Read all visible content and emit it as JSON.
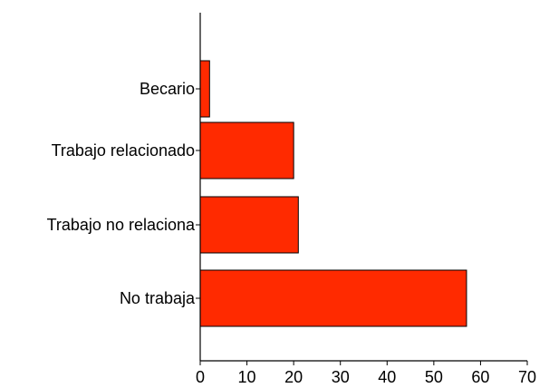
{
  "chart_data": {
    "type": "bar",
    "orientation": "horizontal",
    "title": "",
    "xlabel": "",
    "ylabel": "",
    "categories": [
      "Becario",
      "Trabajo relacionado",
      "Trabajo no relacionado",
      "No trabaja"
    ],
    "category_labels_shown": [
      "Becario",
      "Trabajo relacionado",
      "Trabajo no relaciona",
      "No trabaja"
    ],
    "values": [
      2,
      20,
      21,
      57
    ],
    "xlim": [
      0,
      70
    ],
    "xticks": [
      "0",
      "10",
      "20",
      "30",
      "40",
      "50",
      "60",
      "70"
    ],
    "grid": false,
    "legend": "none",
    "colors": {
      "bar_fill": "#ff2a00",
      "bar_stroke": "#000000",
      "axis": "#000000"
    }
  }
}
